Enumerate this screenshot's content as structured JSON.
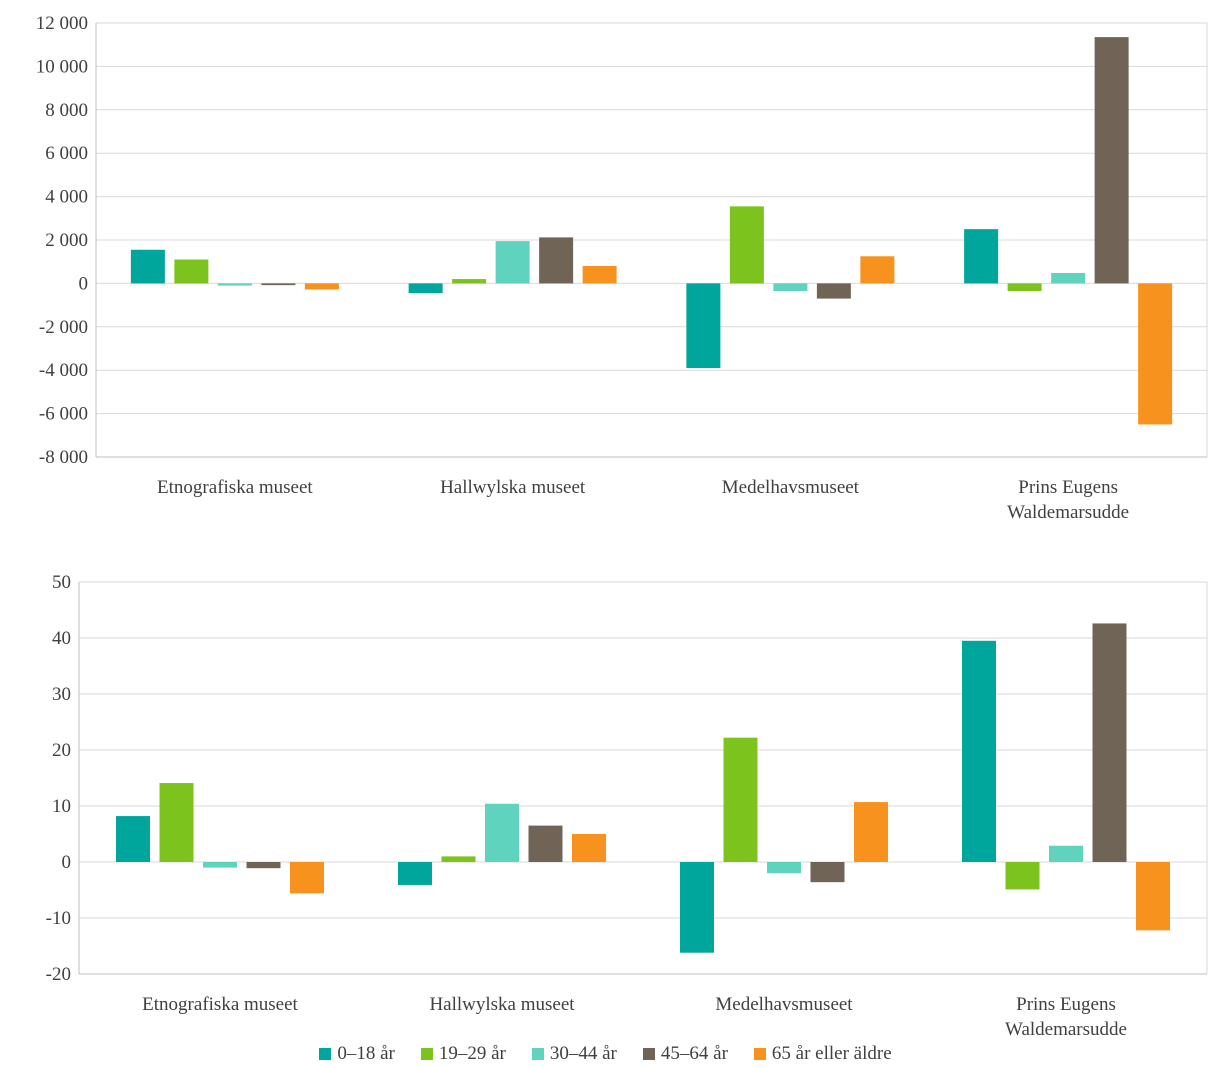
{
  "colors": [
    "#00A59B",
    "#7DC31E",
    "#5FD3BE",
    "#6F6456",
    "#F7921E"
  ],
  "chart_data": [
    {
      "type": "bar",
      "categories": [
        [
          "Etnografiska museet"
        ],
        [
          "Hallwylska museet"
        ],
        [
          "Medelhavsmuseet"
        ],
        [
          "Prins Eugens",
          "Waldemarsudde"
        ]
      ],
      "series": [
        {
          "name": "0–18 år",
          "values": [
            1550,
            -450,
            -3900,
            2500
          ]
        },
        {
          "name": "19–29 år",
          "values": [
            1100,
            200,
            3550,
            -350
          ]
        },
        {
          "name": "30–44 år",
          "values": [
            -100,
            1950,
            -350,
            480
          ]
        },
        {
          "name": "45–64 år",
          "values": [
            -80,
            2120,
            -700,
            11350
          ]
        },
        {
          "name": "65 år eller äldre",
          "values": [
            -280,
            800,
            1250,
            -6500
          ]
        }
      ],
      "ylim": [
        -8000,
        12000
      ],
      "yticks": [
        12000,
        10000,
        8000,
        6000,
        4000,
        2000,
        0,
        -2000,
        -4000,
        -6000,
        -8000
      ],
      "ytick_labels": [
        "12 000",
        "10 000",
        "8 000",
        "6 000",
        "4 000",
        "2 000",
        "0",
        "-2 000",
        "-4 000",
        "-6 000",
        "-8 000"
      ],
      "grid": true
    },
    {
      "type": "bar",
      "categories": [
        [
          "Etnografiska museet"
        ],
        [
          "Hallwylska museet"
        ],
        [
          "Medelhavsmuseet"
        ],
        [
          "Prins Eugens",
          "Waldemarsudde"
        ]
      ],
      "series": [
        {
          "name": "0–18 år",
          "values": [
            8.2,
            -4.1,
            -16.2,
            39.5
          ]
        },
        {
          "name": "19–29 år",
          "values": [
            14.1,
            1.0,
            22.2,
            -4.9
          ]
        },
        {
          "name": "30–44 år",
          "values": [
            -1.0,
            10.4,
            -2.0,
            2.9
          ]
        },
        {
          "name": "45–64 år",
          "values": [
            -1.1,
            6.5,
            -3.6,
            42.6
          ]
        },
        {
          "name": "65 år eller äldre",
          "values": [
            -5.6,
            5.0,
            10.7,
            -12.2
          ]
        }
      ],
      "ylim": [
        -20,
        50
      ],
      "yticks": [
        50,
        40,
        30,
        20,
        10,
        0,
        -10,
        -20
      ],
      "ytick_labels": [
        "50",
        "40",
        "30",
        "20",
        "10",
        "0",
        "-10",
        "-20"
      ],
      "grid": true,
      "legend": "bottom"
    }
  ],
  "legend": {
    "items": [
      "0–18 år",
      "19–29 år",
      "30–44 år",
      "45–64 år",
      "65 år eller äldre"
    ]
  }
}
